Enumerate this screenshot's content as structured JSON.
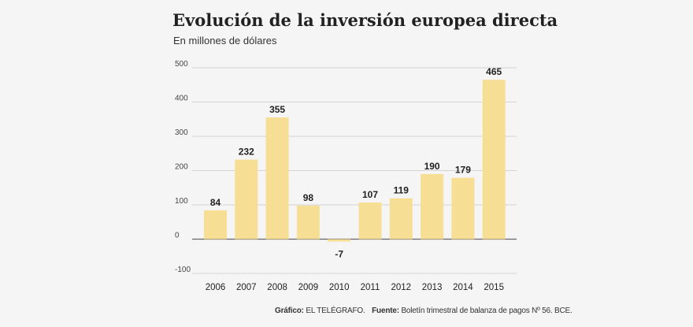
{
  "header": {
    "title": "Evolución de la inversión europea directa",
    "subtitle": "En millones de dólares"
  },
  "footer": {
    "credit_label": "Gráfico:",
    "credit_value": "EL TELÉGRAFO.",
    "source_label": "Fuente:",
    "source_value": "Boletín trimestral de balanza de pagos Nº 56. BCE."
  },
  "colors": {
    "bar": "#f6df95",
    "grid": "#c8c8c8",
    "axis": "#666666"
  },
  "chart_data": {
    "type": "bar",
    "title": "Evolución de la inversión europea directa",
    "subtitle": "En millones de dólares",
    "categories": [
      "2006",
      "2007",
      "2008",
      "2009",
      "2010",
      "2011",
      "2012",
      "2013",
      "2014",
      "2015"
    ],
    "values": [
      84,
      232,
      355,
      98,
      -7,
      107,
      119,
      190,
      179,
      465
    ],
    "data_labels": [
      "84",
      "232",
      "355",
      "98",
      "-7",
      "107",
      "119",
      "190",
      "179",
      "465"
    ],
    "yticks": [
      -100,
      0,
      100,
      200,
      300,
      400,
      500
    ],
    "ylim": [
      -100,
      500
    ],
    "xlabel": "",
    "ylabel": "",
    "grid": true,
    "legend": "none"
  }
}
